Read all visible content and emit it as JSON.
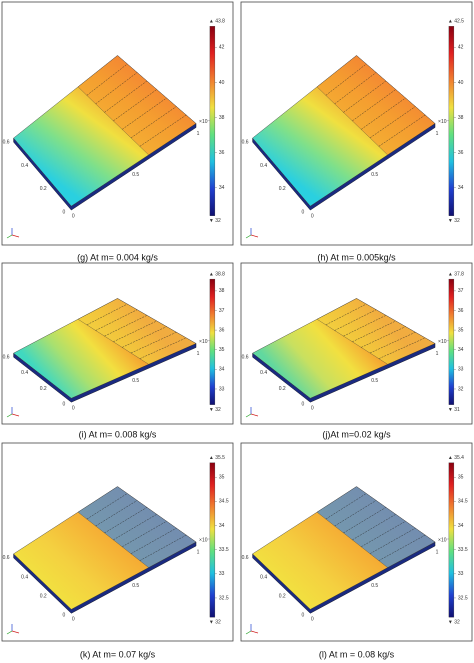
{
  "panels": [
    {
      "caption": "(g) At m= 0.004 kg/s",
      "max_label": "▲ 43.8",
      "min_label": "▼ 32",
      "colorbar_ticks": [
        "42",
        "40",
        "38",
        "36",
        "34"
      ],
      "plate_colors": [
        "#2ad0e0",
        "#7fe08a",
        "#f0e040",
        "#f59a30",
        "#f03040"
      ],
      "strip_color": "#f5a030"
    },
    {
      "caption": "(h) At m= 0.005kg/s",
      "max_label": "▲ 42.5",
      "min_label": "▼ 32",
      "colorbar_ticks": [
        "42",
        "40",
        "38",
        "36",
        "34"
      ],
      "plate_colors": [
        "#2ad0e0",
        "#7fe08a",
        "#f0e040",
        "#f59a30",
        "#f03040"
      ],
      "strip_color": "#f5a030"
    },
    {
      "caption": "(i) At m= 0.008 kg/s",
      "max_label": "▲ 38.8",
      "min_label": "▼ 32",
      "colorbar_ticks": [
        "38",
        "37",
        "36",
        "35",
        "34",
        "33"
      ],
      "plate_colors": [
        "#40d8c0",
        "#a8e070",
        "#f2e040",
        "#f5a030",
        "#f04040"
      ],
      "strip_color": "#f2d040"
    },
    {
      "caption": "(j)At m=0.02 kg/s",
      "max_label": "▲ 37.8",
      "min_label": "▼ 31",
      "colorbar_ticks": [
        "37",
        "36",
        "35",
        "34",
        "33",
        "32"
      ],
      "plate_colors": [
        "#60d8a0",
        "#c8e060",
        "#f2e040",
        "#f5a030",
        "#f04040"
      ],
      "strip_color": "#f2d040"
    },
    {
      "caption": "(k) At m= 0.07 kg/s",
      "max_label": "▲ 35.5",
      "min_label": "▼ 32",
      "colorbar_ticks": [
        "35",
        "34.5",
        "34",
        "33.5",
        "33",
        "32.5"
      ],
      "plate_colors": [
        "#f2e040",
        "#f4d040",
        "#f5b838",
        "#f5a030",
        "#f08838"
      ],
      "strip_color": "#4a90d8"
    },
    {
      "caption": "(l) At m = 0.08 kg/s",
      "max_label": "▲ 35.4",
      "min_label": "▼ 32",
      "colorbar_ticks": [
        "35",
        "34.5",
        "34",
        "33.5",
        "33",
        "32.5"
      ],
      "plate_colors": [
        "#f2e040",
        "#f4d040",
        "#f5b838",
        "#f5a030",
        "#f08838"
      ],
      "strip_color": "#4a90d8"
    }
  ],
  "plate_axis": {
    "y": [
      "0.6",
      "0.4",
      "0.2",
      "0"
    ],
    "x": [
      "0",
      "0.5",
      "1"
    ],
    "exponent": "×10⁻³"
  }
}
